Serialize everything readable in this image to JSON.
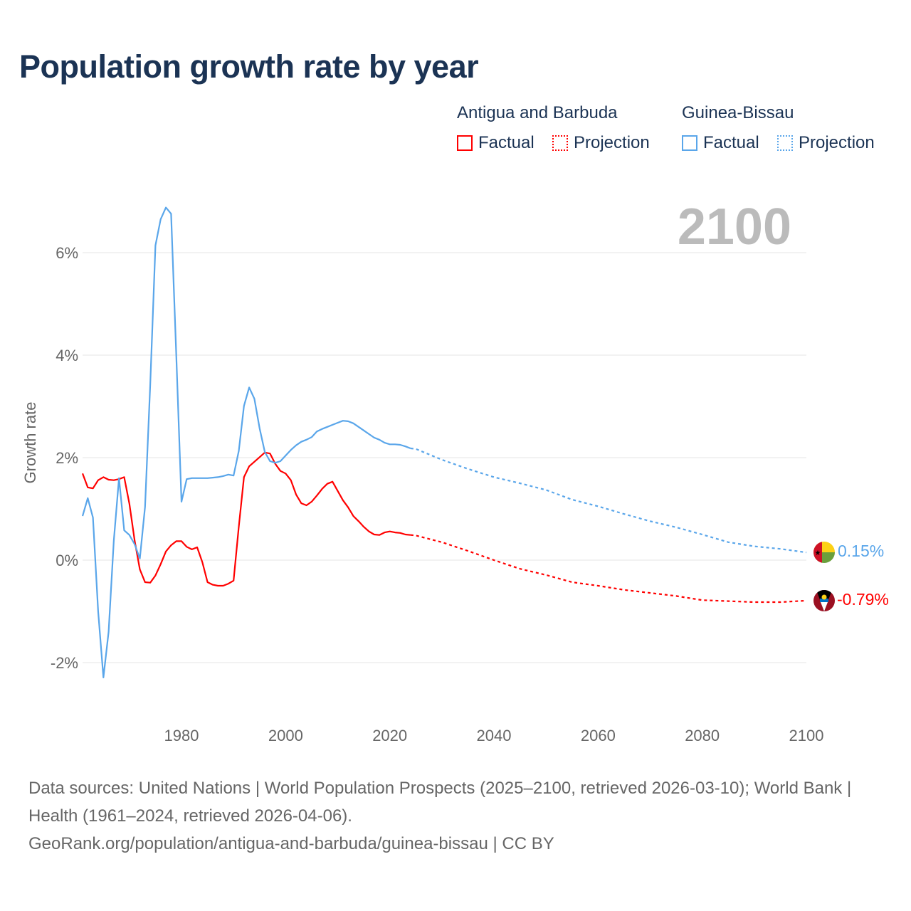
{
  "title": "Population growth rate by year",
  "legend": {
    "groups": [
      {
        "name": "Antigua and Barbuda",
        "color": "#ff0000",
        "factual_label": "Factual",
        "projection_label": "Projection"
      },
      {
        "name": "Guinea-Bissau",
        "color": "#5aa6ea",
        "factual_label": "Factual",
        "projection_label": "Projection"
      }
    ]
  },
  "year_display": "2100",
  "end_labels": {
    "guinea_bissau": "0.15%",
    "antigua": "-0.79%"
  },
  "flags": {
    "guinea_bissau": "guinea-bissau-flag-icon",
    "antigua": "antigua-flag-icon"
  },
  "chart_data": {
    "type": "line",
    "title": "Population growth rate by year",
    "xlabel": "",
    "ylabel": "Growth rate",
    "xlim": [
      1961,
      2100
    ],
    "ylim": [
      -3,
      7.5
    ],
    "x_ticks": [
      1980,
      2000,
      2020,
      2040,
      2060,
      2080,
      2100
    ],
    "x_tick_labels": [
      "1980",
      "2000",
      "2020",
      "2040",
      "2060",
      "2080",
      "2100"
    ],
    "y_ticks": [
      -2,
      0,
      2,
      4,
      6
    ],
    "y_tick_labels": [
      "-2%",
      "0%",
      "2%",
      "4%",
      "6%"
    ],
    "grid": true,
    "legend_position": "top-right",
    "series": [
      {
        "name": "Antigua and Barbuda",
        "color": "#ff0000",
        "factual": {
          "x": [
            1961,
            1962,
            1963,
            1964,
            1965,
            1966,
            1967,
            1968,
            1969,
            1970,
            1971,
            1972,
            1973,
            1974,
            1975,
            1976,
            1977,
            1978,
            1979,
            1980,
            1981,
            1982,
            1983,
            1984,
            1985,
            1986,
            1987,
            1988,
            1989,
            1990,
            1991,
            1992,
            1993,
            1994,
            1995,
            1996,
            1997,
            1998,
            1999,
            2000,
            2001,
            2002,
            2003,
            2004,
            2005,
            2006,
            2007,
            2008,
            2009,
            2010,
            2011,
            2012,
            2013,
            2014,
            2015,
            2016,
            2017,
            2018,
            2019,
            2020,
            2021,
            2022,
            2023,
            2024
          ],
          "y": [
            1.69,
            1.42,
            1.4,
            1.56,
            1.62,
            1.57,
            1.56,
            1.58,
            1.62,
            1.1,
            0.38,
            -0.18,
            -0.43,
            -0.44,
            -0.3,
            -0.08,
            0.17,
            0.29,
            0.37,
            0.37,
            0.26,
            0.21,
            0.25,
            -0.04,
            -0.43,
            -0.48,
            -0.5,
            -0.5,
            -0.46,
            -0.4,
            0.65,
            1.62,
            1.83,
            1.92,
            2.01,
            2.1,
            2.08,
            1.88,
            1.74,
            1.69,
            1.56,
            1.28,
            1.11,
            1.07,
            1.14,
            1.26,
            1.39,
            1.49,
            1.53,
            1.35,
            1.17,
            1.03,
            0.86,
            0.76,
            0.65,
            0.56,
            0.5,
            0.49,
            0.54,
            0.56,
            0.54,
            0.53,
            0.5,
            0.49
          ]
        },
        "projection": {
          "x": [
            2024,
            2025,
            2030,
            2035,
            2040,
            2045,
            2050,
            2055,
            2060,
            2065,
            2070,
            2075,
            2080,
            2085,
            2090,
            2095,
            2100
          ],
          "y": [
            0.49,
            0.48,
            0.35,
            0.18,
            0.0,
            -0.17,
            -0.29,
            -0.43,
            -0.5,
            -0.58,
            -0.64,
            -0.7,
            -0.78,
            -0.8,
            -0.82,
            -0.82,
            -0.79
          ]
        }
      },
      {
        "name": "Guinea-Bissau",
        "color": "#5aa6ea",
        "factual": {
          "x": [
            1961,
            1962,
            1963,
            1964,
            1965,
            1966,
            1967,
            1968,
            1969,
            1970,
            1971,
            1972,
            1973,
            1974,
            1975,
            1976,
            1977,
            1978,
            1979,
            1980,
            1981,
            1982,
            1983,
            1984,
            1985,
            1986,
            1987,
            1988,
            1989,
            1990,
            1991,
            1992,
            1993,
            1994,
            1995,
            1996,
            1997,
            1998,
            1999,
            2000,
            2001,
            2002,
            2003,
            2004,
            2005,
            2006,
            2007,
            2008,
            2009,
            2010,
            2011,
            2012,
            2013,
            2014,
            2015,
            2016,
            2017,
            2018,
            2019,
            2020,
            2021,
            2022,
            2023,
            2024
          ],
          "y": [
            0.86,
            1.21,
            0.83,
            -1.0,
            -2.29,
            -1.4,
            0.38,
            1.6,
            0.58,
            0.49,
            0.31,
            0.03,
            1.04,
            3.43,
            6.14,
            6.65,
            6.88,
            6.76,
            3.99,
            1.14,
            1.58,
            1.6,
            1.6,
            1.6,
            1.6,
            1.61,
            1.62,
            1.64,
            1.67,
            1.65,
            2.13,
            3.01,
            3.37,
            3.15,
            2.57,
            2.11,
            1.93,
            1.9,
            1.93,
            2.04,
            2.15,
            2.24,
            2.31,
            2.35,
            2.4,
            2.51,
            2.56,
            2.6,
            2.64,
            2.68,
            2.72,
            2.71,
            2.67,
            2.6,
            2.53,
            2.46,
            2.39,
            2.35,
            2.29,
            2.26,
            2.26,
            2.25,
            2.22,
            2.18
          ]
        },
        "projection": {
          "x": [
            2024,
            2025,
            2030,
            2035,
            2040,
            2045,
            2050,
            2055,
            2060,
            2065,
            2070,
            2075,
            2080,
            2085,
            2090,
            2095,
            2100
          ],
          "y": [
            2.18,
            2.17,
            1.96,
            1.78,
            1.62,
            1.5,
            1.37,
            1.18,
            1.05,
            0.9,
            0.76,
            0.64,
            0.5,
            0.35,
            0.27,
            0.22,
            0.15
          ]
        }
      }
    ]
  },
  "footer": {
    "line1": "Data sources: United Nations | World Population Prospects (2025–2100, retrieved 2026-03-10); World Bank | Health (1961–2024, retrieved 2026-04-06).",
    "line2": "GeoRank.org/population/antigua-and-barbuda/guinea-bissau | CC BY"
  }
}
